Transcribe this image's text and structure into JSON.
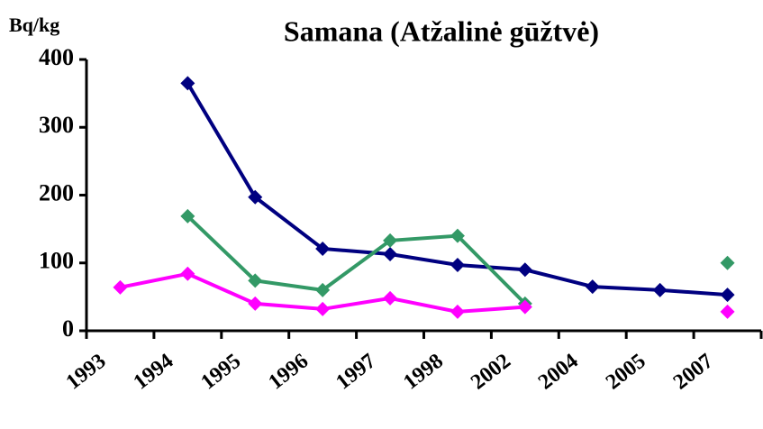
{
  "chart_data": {
    "type": "line",
    "title": "Samana (Atžalinė gūžtvė)",
    "y_label": "Bq/kg",
    "categories": [
      "1993",
      "1994",
      "1995",
      "1996",
      "1997",
      "1998",
      "2002",
      "2004",
      "2005",
      "2007"
    ],
    "series": [
      {
        "color": "#000080",
        "values": [
          null,
          365,
          197,
          121,
          113,
          97,
          90,
          65,
          60,
          53
        ]
      },
      {
        "color": "#339966",
        "values": [
          null,
          169,
          74,
          60,
          133,
          140,
          40,
          null,
          null,
          100
        ]
      },
      {
        "color": "#ff00ff",
        "values": [
          64,
          84,
          40,
          32,
          48,
          28,
          35,
          null,
          null,
          28
        ]
      }
    ],
    "ylim": [
      0,
      400
    ],
    "yticks": [
      0,
      100,
      200,
      300,
      400
    ],
    "grid": false
  }
}
